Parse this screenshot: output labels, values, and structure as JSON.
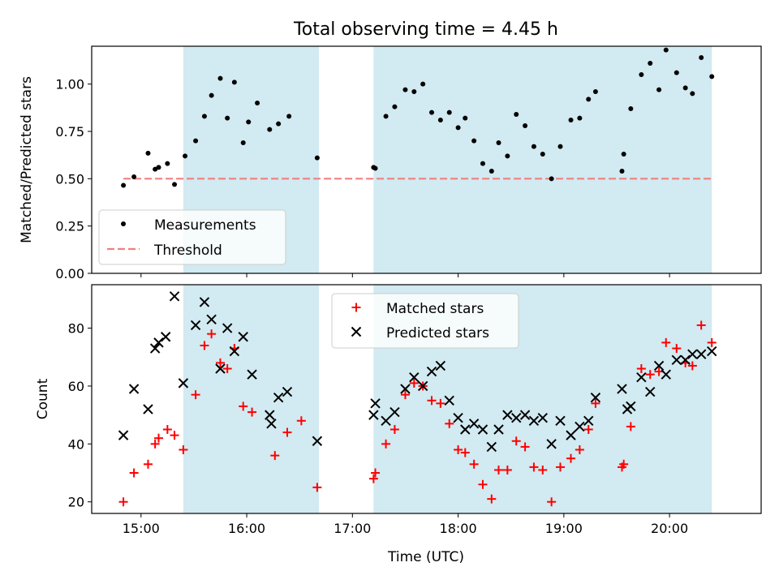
{
  "figure": {
    "title": "Total observing time = 4.45 h",
    "xlabel": "Time (UTC)"
  },
  "chart_data": [
    {
      "type": "scatter",
      "ylabel": "Matched/Predicted stars",
      "ylim": [
        0,
        1.2
      ],
      "yticks": [
        "0.00",
        "0.25",
        "0.50",
        "0.75",
        "1.00"
      ],
      "ytick_values": [
        0,
        0.25,
        0.5,
        0.75,
        1.0
      ],
      "legend_position": "lower-left",
      "threshold": {
        "label": "Threshold",
        "value": 0.5,
        "x": [
          "14:50",
          "20:24"
        ],
        "color": "#f08080"
      },
      "series": [
        {
          "name": "Measurements",
          "color": "#000000",
          "marker": "dot",
          "x": [
            "14:50",
            "14:56",
            "15:04",
            "15:08",
            "15:10",
            "15:15",
            "15:19",
            "15:25",
            "15:31",
            "15:36",
            "15:40",
            "15:45",
            "15:49",
            "15:53",
            "15:58",
            "16:01",
            "16:06",
            "16:13",
            "16:18",
            "16:24",
            "16:40",
            "17:12",
            "17:13",
            "17:19",
            "17:24",
            "17:30",
            "17:35",
            "17:40",
            "17:45",
            "17:50",
            "17:55",
            "18:00",
            "18:04",
            "18:09",
            "18:14",
            "18:19",
            "18:23",
            "18:28",
            "18:33",
            "18:38",
            "18:43",
            "18:48",
            "18:53",
            "18:58",
            "19:04",
            "19:09",
            "19:14",
            "19:18",
            "19:33",
            "19:34",
            "19:38",
            "19:44",
            "19:49",
            "19:54",
            "19:58",
            "20:04",
            "20:09",
            "20:13",
            "20:18",
            "20:24"
          ],
          "y": [
            0.465,
            0.51,
            0.635,
            0.55,
            0.56,
            0.58,
            0.47,
            0.62,
            0.7,
            0.83,
            0.94,
            1.03,
            0.82,
            1.01,
            0.69,
            0.8,
            0.9,
            0.76,
            0.79,
            0.83,
            0.61,
            0.56,
            0.555,
            0.83,
            0.88,
            0.97,
            0.96,
            1.0,
            0.85,
            0.81,
            0.85,
            0.77,
            0.82,
            0.7,
            0.58,
            0.54,
            0.69,
            0.62,
            0.84,
            0.78,
            0.67,
            0.63,
            0.5,
            0.67,
            0.81,
            0.82,
            0.92,
            0.96,
            0.54,
            0.63,
            0.87,
            1.05,
            1.11,
            0.97,
            1.18,
            1.06,
            0.98,
            0.95,
            1.14,
            1.04
          ]
        }
      ]
    },
    {
      "type": "scatter",
      "ylabel": "Count",
      "ylim": [
        16,
        95
      ],
      "yticks": [
        "20",
        "40",
        "60",
        "80"
      ],
      "ytick_values": [
        20,
        40,
        60,
        80
      ],
      "legend_position": "upper-center",
      "series": [
        {
          "name": "Matched stars",
          "color": "#ff0000",
          "marker": "plus",
          "x": [
            "14:50",
            "14:56",
            "15:04",
            "15:08",
            "15:10",
            "15:15",
            "15:19",
            "15:24",
            "15:31",
            "15:36",
            "15:40",
            "15:45",
            "15:49",
            "15:53",
            "15:58",
            "16:03",
            "16:16",
            "16:23",
            "16:31",
            "16:40",
            "17:12",
            "17:13",
            "17:19",
            "17:24",
            "17:30",
            "17:35",
            "17:40",
            "17:45",
            "17:50",
            "17:55",
            "18:00",
            "18:04",
            "18:09",
            "18:14",
            "18:19",
            "18:23",
            "18:28",
            "18:33",
            "18:38",
            "18:43",
            "18:48",
            "18:53",
            "18:58",
            "19:04",
            "19:09",
            "19:14",
            "19:18",
            "19:33",
            "19:34",
            "19:38",
            "19:44",
            "19:49",
            "19:54",
            "19:58",
            "20:04",
            "20:09",
            "20:13",
            "20:18",
            "20:24"
          ],
          "y": [
            20,
            30,
            33,
            40,
            42,
            45,
            43,
            38,
            57,
            74,
            78,
            68,
            66,
            73,
            53,
            51,
            36,
            44,
            48,
            25,
            28,
            30,
            40,
            45,
            57,
            61,
            60,
            55,
            54,
            47,
            38,
            37,
            33,
            26,
            21,
            31,
            31,
            41,
            39,
            32,
            31,
            20,
            32,
            35,
            38,
            45,
            54,
            32,
            33,
            46,
            66,
            64,
            65,
            75,
            73,
            68,
            67,
            81,
            75
          ]
        },
        {
          "name": "Predicted stars",
          "color": "#000000",
          "marker": "x",
          "x": [
            "14:50",
            "14:56",
            "15:04",
            "15:08",
            "15:10",
            "15:14",
            "15:19",
            "15:24",
            "15:31",
            "15:36",
            "15:40",
            "15:45",
            "15:49",
            "15:53",
            "15:58",
            "16:03",
            "16:13",
            "16:14",
            "16:18",
            "16:23",
            "16:40",
            "17:12",
            "17:13",
            "17:19",
            "17:24",
            "17:30",
            "17:35",
            "17:40",
            "17:45",
            "17:50",
            "17:55",
            "18:00",
            "18:04",
            "18:09",
            "18:14",
            "18:19",
            "18:23",
            "18:28",
            "18:33",
            "18:38",
            "18:43",
            "18:48",
            "18:53",
            "18:58",
            "19:04",
            "19:09",
            "19:14",
            "19:18",
            "19:33",
            "19:36",
            "19:38",
            "19:44",
            "19:49",
            "19:54",
            "19:58",
            "20:04",
            "20:09",
            "20:13",
            "20:18",
            "20:24"
          ],
          "y": [
            43,
            59,
            52,
            73,
            75,
            77,
            91,
            61,
            81,
            89,
            83,
            66,
            80,
            72,
            77,
            64,
            50,
            47,
            56,
            58,
            41,
            50,
            54,
            48,
            51,
            59,
            63,
            60,
            65,
            67,
            55,
            49,
            45,
            47,
            45,
            39,
            45,
            50,
            49,
            50,
            48,
            49,
            40,
            48,
            43,
            46,
            48,
            56,
            59,
            52,
            53,
            63,
            58,
            67,
            64,
            69,
            69,
            71,
            71,
            72
          ]
        }
      ]
    }
  ],
  "shared_x": {
    "range": [
      "14:32",
      "20:52"
    ],
    "ticks": [
      "15:00",
      "16:00",
      "17:00",
      "18:00",
      "19:00",
      "20:00"
    ],
    "shaded_intervals": [
      [
        "15:24",
        "16:41"
      ],
      [
        "17:12",
        "20:24"
      ]
    ],
    "shade_color": "#add8e6"
  }
}
